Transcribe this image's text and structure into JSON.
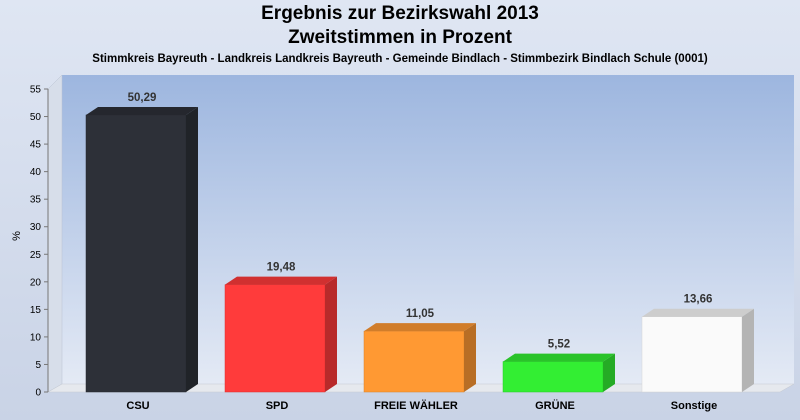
{
  "header": {
    "title_line1": "Ergebnis zur Bezirkswahl 2013",
    "title_line2": "Zweitstimmen in Prozent",
    "subtitle": "Stimmkreis Bayreuth - Landkreis Landkreis Bayreuth - Gemeinde Bindlach - Stimmbezirk Bindlach Schule (0001)"
  },
  "chart_data": {
    "type": "bar",
    "title": "Ergebnis zur Bezirkswahl 2013",
    "subtitle": "Zweitstimmen in Prozent",
    "xlabel": "",
    "ylabel": "%",
    "ylim": [
      0,
      55
    ],
    "yticks": [
      0,
      5,
      10,
      15,
      20,
      25,
      30,
      35,
      40,
      45,
      50,
      55
    ],
    "categories": [
      "CSU",
      "SPD",
      "FREIE WÄHLER",
      "GRÜNE",
      "Sonstige"
    ],
    "values": [
      50.29,
      19.48,
      11.05,
      5.52,
      13.66
    ],
    "value_labels": [
      "50,29",
      "19,48",
      "11,05",
      "5,52",
      "13,66"
    ],
    "colors": [
      "#2d3038",
      "#ff3b3b",
      "#ff9933",
      "#33ee33",
      "#fafafa"
    ],
    "grid": false,
    "legend": "none"
  }
}
